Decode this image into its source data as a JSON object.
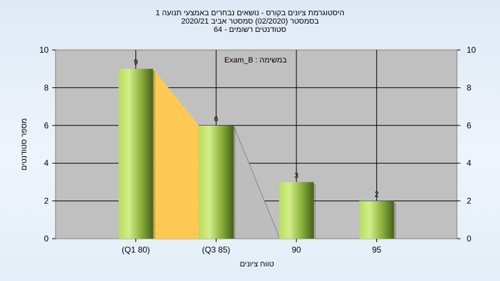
{
  "chart_data": {
    "type": "bar",
    "title_lines": [
      "היסטוגרמת ציונים בקורס - נושאים נבחרים באמצעי תנועה 1",
      "בסמסטר  (02/2020)  סמסטר אביב 2020/21",
      "סטודנטים רשומים - 64"
    ],
    "annotation": "במשימה : Exam_B",
    "categories": [
      "(Q1 80)",
      "(Q3 85)",
      "90",
      "95"
    ],
    "values": [
      9,
      6,
      3,
      2
    ],
    "xlabel": "טווח ציונים",
    "ylabel": "מספר סטודנטים",
    "ylim": [
      0,
      10
    ],
    "yticks": [
      0,
      2,
      4,
      6,
      8,
      10
    ],
    "grid": true,
    "colors": {
      "plot_bg": "#c0c0c0",
      "bar_light": "#c8e87a",
      "bar_dark": "#4a6a1e",
      "area_q1_q3": "#ffc955",
      "area_q3_tail": "#bdbdbd",
      "gridline": "#000000"
    }
  }
}
